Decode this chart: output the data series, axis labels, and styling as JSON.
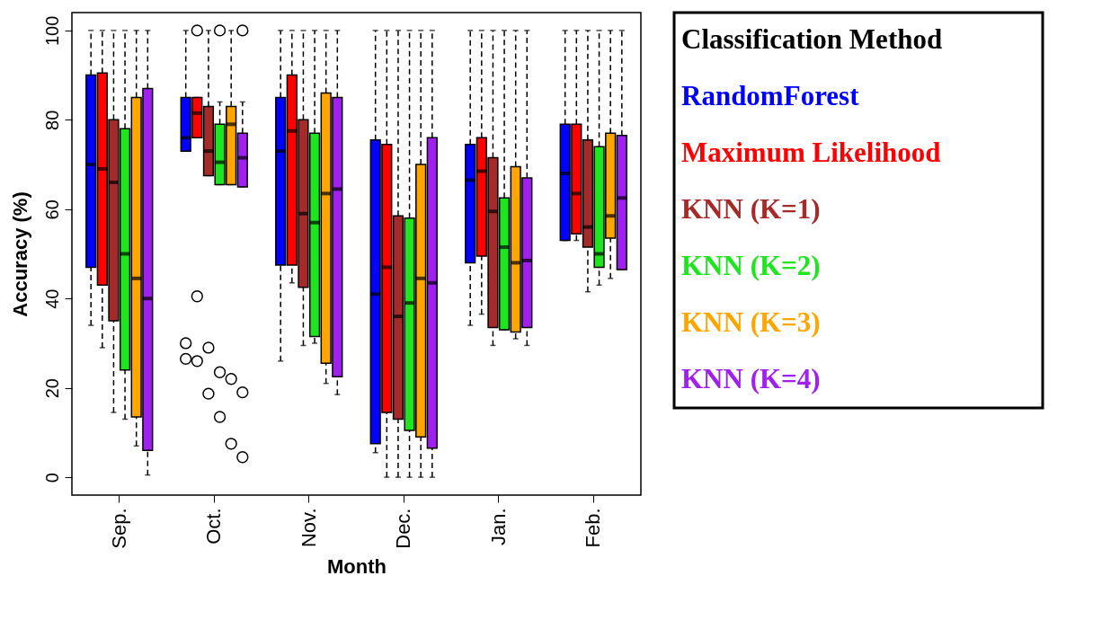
{
  "chart_data": {
    "type": "box",
    "xlabel": "Month",
    "ylabel": "Accuracy (%)",
    "legend_title": "Classification Method",
    "legend": "right",
    "marker": "circle",
    "categories": [
      "Sep.",
      "Oct.",
      "Nov.",
      "Dec.",
      "Jan.",
      "Feb."
    ],
    "ylim": [
      -4,
      104
    ],
    "yticks": [
      0,
      20,
      40,
      60,
      80,
      100
    ],
    "series": [
      {
        "name": "RandomForest",
        "color": "#0000ff",
        "boxes": [
          {
            "low": 34,
            "q1": 47,
            "median": 70,
            "q3": 90,
            "high": 100
          },
          {
            "low": 73,
            "q1": 73,
            "median": 76,
            "q3": 85,
            "high": 100,
            "outliers": [
              30,
              26.5
            ]
          },
          {
            "low": 26,
            "q1": 47.5,
            "median": 73,
            "q3": 85,
            "high": 100
          },
          {
            "low": 5.5,
            "q1": 7.5,
            "median": 41,
            "q3": 75.5,
            "high": 100
          },
          {
            "low": 34,
            "q1": 48,
            "median": 66.5,
            "q3": 74.5,
            "high": 100
          },
          {
            "low": 53,
            "q1": 53,
            "median": 68,
            "q3": 79,
            "high": 100
          }
        ]
      },
      {
        "name": "Maximum Likelihood",
        "color": "#ff0000",
        "boxes": [
          {
            "low": 29,
            "q1": 43,
            "median": 69,
            "q3": 90.5,
            "high": 100
          },
          {
            "low": 76,
            "q1": 76,
            "median": 81.5,
            "q3": 85,
            "high": 85,
            "outliers": [
              100,
              40.5,
              26
            ]
          },
          {
            "low": 43.5,
            "q1": 47.5,
            "median": 77.5,
            "q3": 90,
            "high": 100
          },
          {
            "low": 0,
            "q1": 14.5,
            "median": 47,
            "q3": 74.5,
            "high": 100
          },
          {
            "low": 36.5,
            "q1": 49.5,
            "median": 68.5,
            "q3": 76,
            "high": 100
          },
          {
            "low": 53,
            "q1": 54.5,
            "median": 63.5,
            "q3": 79,
            "high": 100
          }
        ]
      },
      {
        "name": "KNN (K=1)",
        "color": "#a52a2a",
        "boxes": [
          {
            "low": 14.5,
            "q1": 35,
            "median": 66,
            "q3": 80,
            "high": 100
          },
          {
            "low": 67.5,
            "q1": 67.5,
            "median": 73,
            "q3": 83,
            "high": 100,
            "outliers": [
              29,
              18.7
            ]
          },
          {
            "low": 29.5,
            "q1": 42.5,
            "median": 59,
            "q3": 80,
            "high": 100
          },
          {
            "low": 0,
            "q1": 13,
            "median": 36,
            "q3": 58.5,
            "high": 100
          },
          {
            "low": 29.5,
            "q1": 33.5,
            "median": 59.5,
            "q3": 71.5,
            "high": 100
          },
          {
            "low": 41.5,
            "q1": 51.5,
            "median": 56,
            "q3": 75.5,
            "high": 100
          }
        ]
      },
      {
        "name": "KNN (K=2)",
        "color": "#1ee61e",
        "boxes": [
          {
            "low": 13,
            "q1": 24,
            "median": 50,
            "q3": 78,
            "high": 100
          },
          {
            "low": 65.5,
            "q1": 65.5,
            "median": 70.5,
            "q3": 79,
            "high": 84,
            "outliers": [
              100,
              23.5,
              13.5
            ]
          },
          {
            "low": 30,
            "q1": 31.5,
            "median": 57,
            "q3": 77,
            "high": 100
          },
          {
            "low": 0,
            "q1": 10.5,
            "median": 39,
            "q3": 58,
            "high": 100
          },
          {
            "low": 33,
            "q1": 33,
            "median": 51.5,
            "q3": 62.5,
            "high": 100
          },
          {
            "low": 43,
            "q1": 47,
            "median": 50,
            "q3": 74,
            "high": 100
          }
        ]
      },
      {
        "name": "KNN (K=3)",
        "color": "#ffa500",
        "boxes": [
          {
            "low": 7,
            "q1": 13.5,
            "median": 44.5,
            "q3": 85,
            "high": 100
          },
          {
            "low": 65.5,
            "q1": 65.5,
            "median": 79,
            "q3": 83,
            "high": 100,
            "outliers": [
              22,
              7.5
            ]
          },
          {
            "low": 21,
            "q1": 25.5,
            "median": 63.5,
            "q3": 86,
            "high": 100
          },
          {
            "low": 0,
            "q1": 9,
            "median": 44.5,
            "q3": 70,
            "high": 100
          },
          {
            "low": 31,
            "q1": 32.5,
            "median": 48,
            "q3": 69.5,
            "high": 100
          },
          {
            "low": 44.5,
            "q1": 53.5,
            "median": 58.5,
            "q3": 77,
            "high": 100
          }
        ]
      },
      {
        "name": "KNN (K=4)",
        "color": "#a020f0",
        "boxes": [
          {
            "low": 0.5,
            "q1": 6,
            "median": 40,
            "q3": 87,
            "high": 100
          },
          {
            "low": 65,
            "q1": 65,
            "median": 71.5,
            "q3": 77,
            "high": 84,
            "outliers": [
              100,
              19,
              4.5
            ]
          },
          {
            "low": 18.5,
            "q1": 22.5,
            "median": 64.5,
            "q3": 85,
            "high": 100
          },
          {
            "low": 0,
            "q1": 6.5,
            "median": 43.5,
            "q3": 76,
            "high": 100
          },
          {
            "low": 29.5,
            "q1": 33.5,
            "median": 48.5,
            "q3": 67,
            "high": 100
          },
          {
            "low": 46.5,
            "q1": 46.5,
            "median": 62.5,
            "q3": 76.5,
            "high": 100
          }
        ]
      }
    ]
  }
}
